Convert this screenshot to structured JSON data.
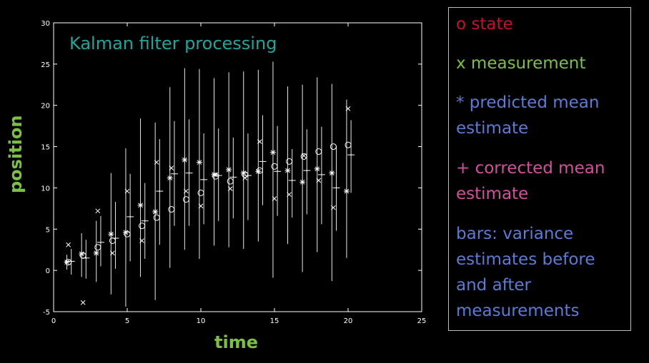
{
  "chart_data": {
    "type": "scatter",
    "title": "Kalman filter processing",
    "xlabel": "time",
    "ylabel": "position",
    "xlim": [
      0,
      25
    ],
    "ylim": [
      -5,
      30
    ],
    "x_ticks": [
      0,
      5,
      10,
      15,
      20,
      25
    ],
    "y_ticks": [
      -5,
      0,
      5,
      10,
      15,
      20,
      25,
      30
    ],
    "series": [
      {
        "name": "state",
        "marker": "o",
        "color": "#ffffff",
        "points": [
          [
            1,
            1
          ],
          [
            2,
            1.8
          ],
          [
            3,
            2.8
          ],
          [
            4,
            3.6
          ],
          [
            5,
            4.4
          ],
          [
            6,
            5.4
          ],
          [
            7,
            6.4
          ],
          [
            8,
            7.4
          ],
          [
            9,
            8.6
          ],
          [
            10,
            9.4
          ],
          [
            11,
            11.4
          ],
          [
            12,
            10.8
          ],
          [
            13,
            11.6
          ],
          [
            14,
            12.1
          ],
          [
            15,
            12.6
          ],
          [
            16,
            13.2
          ],
          [
            17,
            13.8
          ],
          [
            18,
            14.4
          ],
          [
            19,
            15.0
          ],
          [
            20,
            15.2
          ]
        ]
      },
      {
        "name": "measurement",
        "marker": "x",
        "color": "#ffffff",
        "points": [
          [
            1,
            3.1
          ],
          [
            2,
            -3.9
          ],
          [
            3,
            7.2
          ],
          [
            4,
            2.1
          ],
          [
            5,
            9.6
          ],
          [
            6,
            3.6
          ],
          [
            7,
            13.1
          ],
          [
            8,
            12.4
          ],
          [
            9,
            9.6
          ],
          [
            10,
            7.8
          ],
          [
            11,
            11.6
          ],
          [
            12,
            9.9
          ],
          [
            13,
            11.2
          ],
          [
            14,
            15.6
          ],
          [
            15,
            8.7
          ],
          [
            16,
            9.2
          ],
          [
            17,
            13.9
          ],
          [
            18,
            10.9
          ],
          [
            19,
            7.6
          ],
          [
            20,
            19.6
          ]
        ]
      },
      {
        "name": "predicted mean estimate",
        "marker": "*",
        "color": "#ffffff",
        "points": [
          [
            0.9,
            1.0
          ],
          [
            1.9,
            2.0
          ],
          [
            2.9,
            2.1
          ],
          [
            3.9,
            4.4
          ],
          [
            4.9,
            4.6
          ],
          [
            5.9,
            7.9
          ],
          [
            6.9,
            7.1
          ],
          [
            7.9,
            11.2
          ],
          [
            8.9,
            13.4
          ],
          [
            9.9,
            13.1
          ],
          [
            10.9,
            11.6
          ],
          [
            11.9,
            12.2
          ],
          [
            12.9,
            11.8
          ],
          [
            13.9,
            12.0
          ],
          [
            14.9,
            14.3
          ],
          [
            15.9,
            12.1
          ],
          [
            16.9,
            10.7
          ],
          [
            17.9,
            12.3
          ],
          [
            18.9,
            11.8
          ],
          [
            19.9,
            9.6
          ]
        ]
      },
      {
        "name": "corrected mean estimate",
        "marker": "+",
        "color": "#ffffff",
        "points": [
          [
            1.2,
            1.1
          ],
          [
            2.2,
            1.5
          ],
          [
            3.2,
            3.4
          ],
          [
            4.2,
            3.9
          ],
          [
            5.2,
            6.5
          ],
          [
            6.2,
            6.0
          ],
          [
            7.2,
            9.6
          ],
          [
            8.2,
            11.7
          ],
          [
            9.2,
            11.8
          ],
          [
            10.2,
            11.0
          ],
          [
            11.2,
            11.5
          ],
          [
            12.2,
            11.3
          ],
          [
            13.2,
            11.5
          ],
          [
            14.2,
            13.2
          ],
          [
            15.2,
            12.0
          ],
          [
            16.2,
            10.9
          ],
          [
            17.2,
            12.1
          ],
          [
            18.2,
            11.6
          ],
          [
            19.2,
            10.0
          ],
          [
            20.2,
            14.0
          ]
        ]
      }
    ],
    "error_bars": [
      [
        0.9,
        0.1,
        1.9
      ],
      [
        1.2,
        -0.5,
        2.6
      ],
      [
        1.9,
        -0.8,
        4.5
      ],
      [
        2.2,
        -1.0,
        3.7
      ],
      [
        2.9,
        -1.4,
        6.0
      ],
      [
        3.2,
        0.5,
        6.6
      ],
      [
        3.9,
        -2.9,
        11.8
      ],
      [
        4.2,
        0.2,
        8.3
      ],
      [
        4.9,
        -4.4,
        14.8
      ],
      [
        5.2,
        1.1,
        11.7
      ],
      [
        5.9,
        -0.8,
        18.4
      ],
      [
        6.2,
        1.4,
        10.6
      ],
      [
        6.9,
        -3.6,
        17.9
      ],
      [
        7.2,
        3.1,
        15.9
      ],
      [
        7.9,
        0.3,
        22.2
      ],
      [
        8.2,
        5.4,
        18.1
      ],
      [
        8.9,
        2.5,
        24.5
      ],
      [
        9.2,
        5.4,
        18.3
      ],
      [
        9.9,
        1.4,
        24.4
      ],
      [
        10.2,
        5.6,
        16.6
      ],
      [
        10.9,
        3.0,
        23.3
      ],
      [
        11.2,
        6.0,
        17.2
      ],
      [
        11.9,
        2.8,
        24.0
      ],
      [
        12.2,
        6.3,
        16.1
      ],
      [
        12.9,
        2.6,
        24.1
      ],
      [
        13.2,
        6.1,
        16.6
      ],
      [
        13.9,
        3.5,
        24.3
      ],
      [
        14.2,
        7.9,
        18.8
      ],
      [
        14.9,
        -0.9,
        25.3
      ],
      [
        15.2,
        6.6,
        17.5
      ],
      [
        15.9,
        3.2,
        22.3
      ],
      [
        16.2,
        6.4,
        14.7
      ],
      [
        16.9,
        -0.2,
        22.5
      ],
      [
        17.2,
        6.8,
        17.1
      ],
      [
        17.9,
        2.2,
        23.4
      ],
      [
        18.2,
        5.6,
        17.4
      ],
      [
        18.9,
        -1.3,
        22.6
      ],
      [
        19.2,
        4.8,
        15.1
      ],
      [
        19.9,
        1.5,
        20.7
      ],
      [
        20.2,
        9.4,
        18.2
      ]
    ],
    "legend_position": "right",
    "grid": false
  },
  "legend": {
    "state": "o state",
    "measurement": "x measurement",
    "predicted_line1": "*  predicted mean",
    "predicted_line2": "estimate",
    "corrected_line1": "+ corrected mean",
    "corrected_line2": "estimate",
    "bars_line1": "bars:  variance",
    "bars_line2": "estimates before",
    "bars_line3": "and after",
    "bars_line4": "measurements"
  },
  "colors": {
    "title": "#21a59b",
    "axis_label": "#7ac143",
    "state": "#c8102e",
    "measurement": "#7ac143",
    "predicted": "#5b7bd6",
    "corrected": "#d2509c",
    "bars": "#5b7bd6"
  }
}
